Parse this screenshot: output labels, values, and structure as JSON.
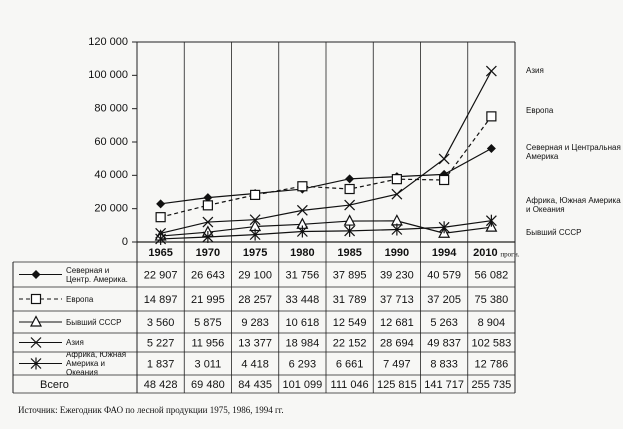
{
  "chart_data": {
    "type": "line",
    "categories": [
      "1965",
      "1970",
      "1975",
      "1980",
      "1985",
      "1990",
      "1994",
      "2010"
    ],
    "forecast_note": "прогн.",
    "ylim": [
      0,
      120000
    ],
    "yticks": [
      0,
      {
        "value": 20000,
        "label": "20 000"
      },
      {
        "value": 40000,
        "label": "40 000"
      },
      {
        "value": 60000,
        "label": "60 000"
      },
      {
        "value": 80000,
        "label": "80 000"
      },
      {
        "value": 100000,
        "label": "100 000"
      },
      {
        "value": 120000,
        "label": "120 000"
      }
    ],
    "series": [
      {
        "name": "Северная и Центр. Америка.",
        "end_label": "Северная и Центральная Америка",
        "color": "#111111",
        "marker": "diamond",
        "dashed": false,
        "values": [
          22907,
          26643,
          29100,
          31756,
          37895,
          39230,
          40579,
          56082
        ],
        "value_labels": [
          "22 907",
          "26 643",
          "29 100",
          "31 756",
          "37 895",
          "39 230",
          "40 579",
          "56 082"
        ]
      },
      {
        "name": "Европа",
        "end_label": "Европа",
        "color": "#111111",
        "marker": "square",
        "dashed": true,
        "values": [
          14897,
          21995,
          28257,
          33448,
          31789,
          37713,
          37205,
          75380
        ],
        "value_labels": [
          "14 897",
          "21 995",
          "28 257",
          "33 448",
          "31 789",
          "37 713",
          "37 205",
          "75 380"
        ]
      },
      {
        "name": "Бывший СССР",
        "end_label": "Бывший СССР",
        "color": "#111111",
        "marker": "triangle",
        "dashed": false,
        "values": [
          3560,
          5875,
          9283,
          10618,
          12549,
          12681,
          5263,
          8904
        ],
        "value_labels": [
          "3 560",
          "5 875",
          "9 283",
          "10 618",
          "12 549",
          "12 681",
          "5 263",
          "8 904"
        ]
      },
      {
        "name": "Азия",
        "end_label": "Азия",
        "color": "#111111",
        "marker": "x",
        "dashed": false,
        "values": [
          5227,
          11956,
          13377,
          18984,
          22152,
          28694,
          49837,
          102583
        ],
        "value_labels": [
          "5 227",
          "11 956",
          "13 377",
          "18 984",
          "22 152",
          "28 694",
          "49 837",
          "102 583"
        ]
      },
      {
        "name": "Африка, Южная Америка и Океания",
        "end_label": "Африка, Южная Америка и Океания",
        "color": "#111111",
        "marker": "asterisk",
        "dashed": false,
        "values": [
          1837,
          3011,
          4418,
          6293,
          6661,
          7497,
          8833,
          12786
        ],
        "value_labels": [
          "1 837",
          "3 011",
          "4 418",
          "6 293",
          "6 661",
          "7 497",
          "8 833",
          "12 786"
        ]
      }
    ],
    "table_total": {
      "name": "Всего",
      "values": [
        48428,
        69480,
        84435,
        101099,
        111046,
        125815,
        141717,
        255735
      ],
      "value_labels": [
        "48 428",
        "69 480",
        "84 435",
        "101 099",
        "111 046",
        "125 815",
        "141 717",
        "255 735"
      ]
    },
    "source": "Источник: Ежегодник ФАО по лесной продукции 1975, 1986, 1994 гг."
  }
}
